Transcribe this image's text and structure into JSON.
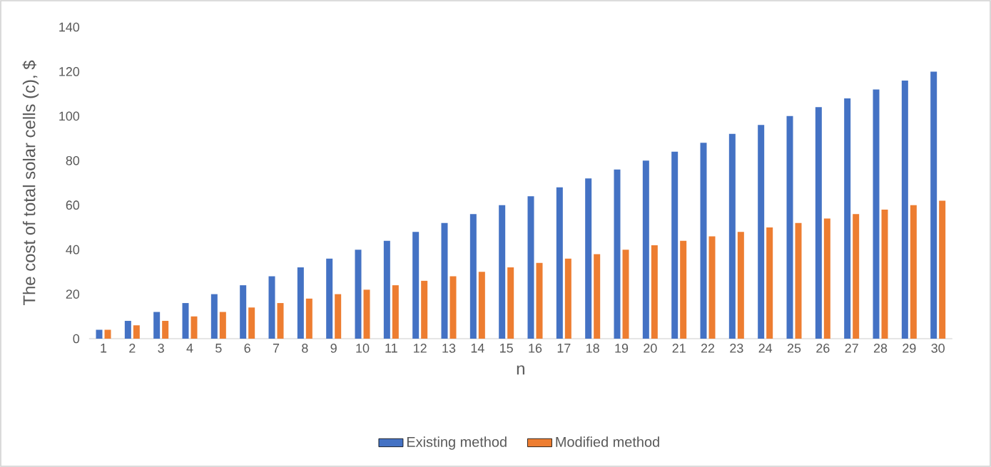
{
  "chart_data": {
    "type": "bar",
    "xlabel": "n",
    "ylabel": "The cost of total solar cells (c), $",
    "categories": [
      "1",
      "2",
      "3",
      "4",
      "5",
      "6",
      "7",
      "8",
      "9",
      "10",
      "11",
      "12",
      "13",
      "14",
      "15",
      "16",
      "17",
      "18",
      "19",
      "20",
      "21",
      "22",
      "23",
      "24",
      "25",
      "26",
      "27",
      "28",
      "29",
      "30"
    ],
    "series": [
      {
        "name": "Existing method",
        "color": "#4472c4",
        "values": [
          4,
          8,
          12,
          16,
          20,
          24,
          28,
          32,
          36,
          40,
          44,
          48,
          52,
          56,
          60,
          64,
          68,
          72,
          76,
          80,
          84,
          88,
          92,
          96,
          100,
          104,
          108,
          112,
          116,
          120
        ]
      },
      {
        "name": "Modified method",
        "color": "#ed7d31",
        "values": [
          4,
          6,
          8,
          10,
          12,
          14,
          16,
          18,
          20,
          22,
          24,
          26,
          28,
          30,
          32,
          34,
          36,
          38,
          40,
          42,
          44,
          46,
          48,
          50,
          52,
          54,
          56,
          58,
          60,
          62
        ]
      }
    ],
    "ylim": [
      0,
      140
    ],
    "yticks": [
      0,
      20,
      40,
      60,
      80,
      100,
      120,
      140
    ],
    "legend": "bottom"
  }
}
